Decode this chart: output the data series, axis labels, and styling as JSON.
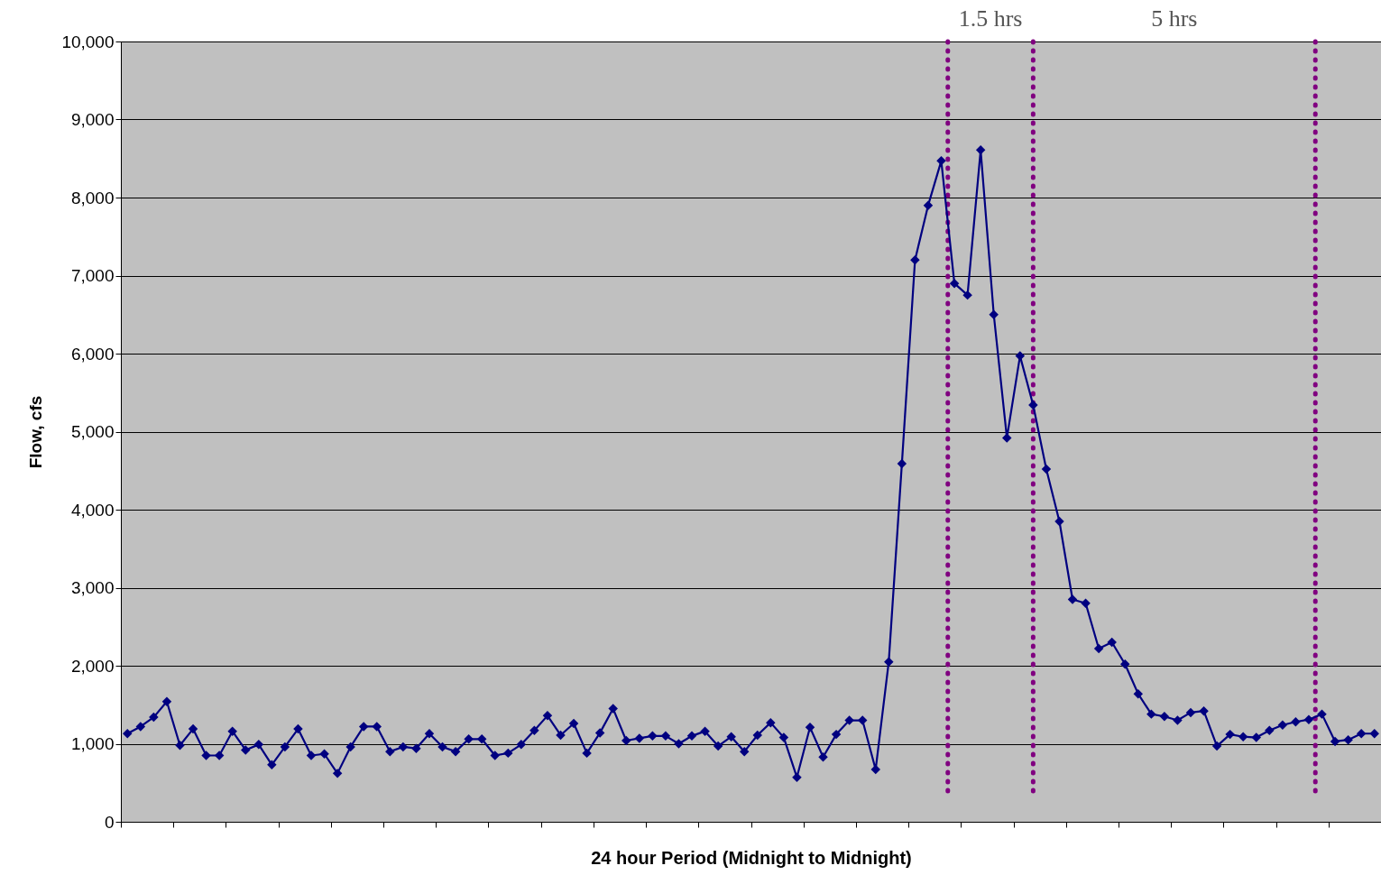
{
  "chart_data": {
    "type": "line",
    "xlabel": "24 hour Period (Midnight to Midnight)",
    "ylabel": "Flow, cfs",
    "categories": [
      null,
      null,
      null,
      null,
      null,
      null,
      null,
      null,
      null,
      null,
      null,
      null,
      null,
      null,
      null,
      null,
      null,
      null,
      null,
      null,
      null,
      null,
      null,
      null,
      null,
      null,
      null,
      null,
      null,
      null,
      null,
      null,
      null,
      null,
      null,
      null,
      null,
      null,
      null,
      null,
      null,
      null,
      null,
      null,
      null,
      null,
      null,
      null,
      null,
      null,
      null,
      null,
      null,
      null,
      null,
      null,
      null,
      null,
      null,
      null,
      null,
      null,
      null,
      null,
      null,
      null,
      null,
      null,
      null,
      null,
      null,
      null,
      null,
      null,
      null,
      null,
      null,
      null,
      null,
      null,
      null,
      null,
      null,
      null,
      null,
      null,
      null,
      null,
      null,
      null,
      null,
      null,
      null,
      null,
      null,
      null
    ],
    "series": [
      {
        "color": "#000080",
        "values": [
          1130,
          1220,
          1340,
          1540,
          980,
          1190,
          850,
          850,
          1160,
          920,
          990,
          730,
          960,
          1190,
          850,
          870,
          620,
          960,
          1220,
          1220,
          900,
          960,
          940,
          1130,
          960,
          900,
          1060,
          1060,
          850,
          880,
          990,
          1170,
          1360,
          1110,
          1260,
          880,
          1140,
          1450,
          1040,
          1070,
          1100,
          1100,
          1000,
          1100,
          1160,
          970,
          1090,
          900,
          1110,
          1270,
          1080,
          570,
          1210,
          830,
          1120,
          1300,
          1300,
          670,
          2050,
          4590,
          7200,
          7900,
          8470,
          6900,
          6750,
          8610,
          6500,
          4920,
          5970,
          5340,
          4520,
          3850,
          2850,
          2800,
          2220,
          2300,
          2020,
          1640,
          1380,
          1350,
          1300,
          1400,
          1420,
          970,
          1120,
          1090,
          1080,
          1170,
          1240,
          1280,
          1310,
          1380,
          1030,
          1050,
          1130,
          1130
        ]
      }
    ],
    "ylim": [
      0,
      10000
    ],
    "yticks": [
      0,
      {
        "value": 1000,
        "label": "1,000"
      },
      {
        "value": 2000,
        "label": "2,000"
      },
      {
        "value": 3000,
        "label": "3,000"
      },
      {
        "value": 4000,
        "label": "4,000"
      },
      {
        "value": 5000,
        "label": "5,000"
      },
      {
        "value": 6000,
        "label": "6,000"
      },
      {
        "value": 7000,
        "label": "7,000"
      },
      {
        "value": 8000,
        "label": "8,000"
      },
      {
        "value": 9000,
        "label": "9,000"
      },
      {
        "value": 10000,
        "label": "10,000"
      }
    ],
    "grid": "y",
    "tick_labels": "y",
    "marker": "diamond",
    "line_style": "solid",
    "annotations": [
      "1.5 hrs",
      "5 hrs"
    ]
  }
}
